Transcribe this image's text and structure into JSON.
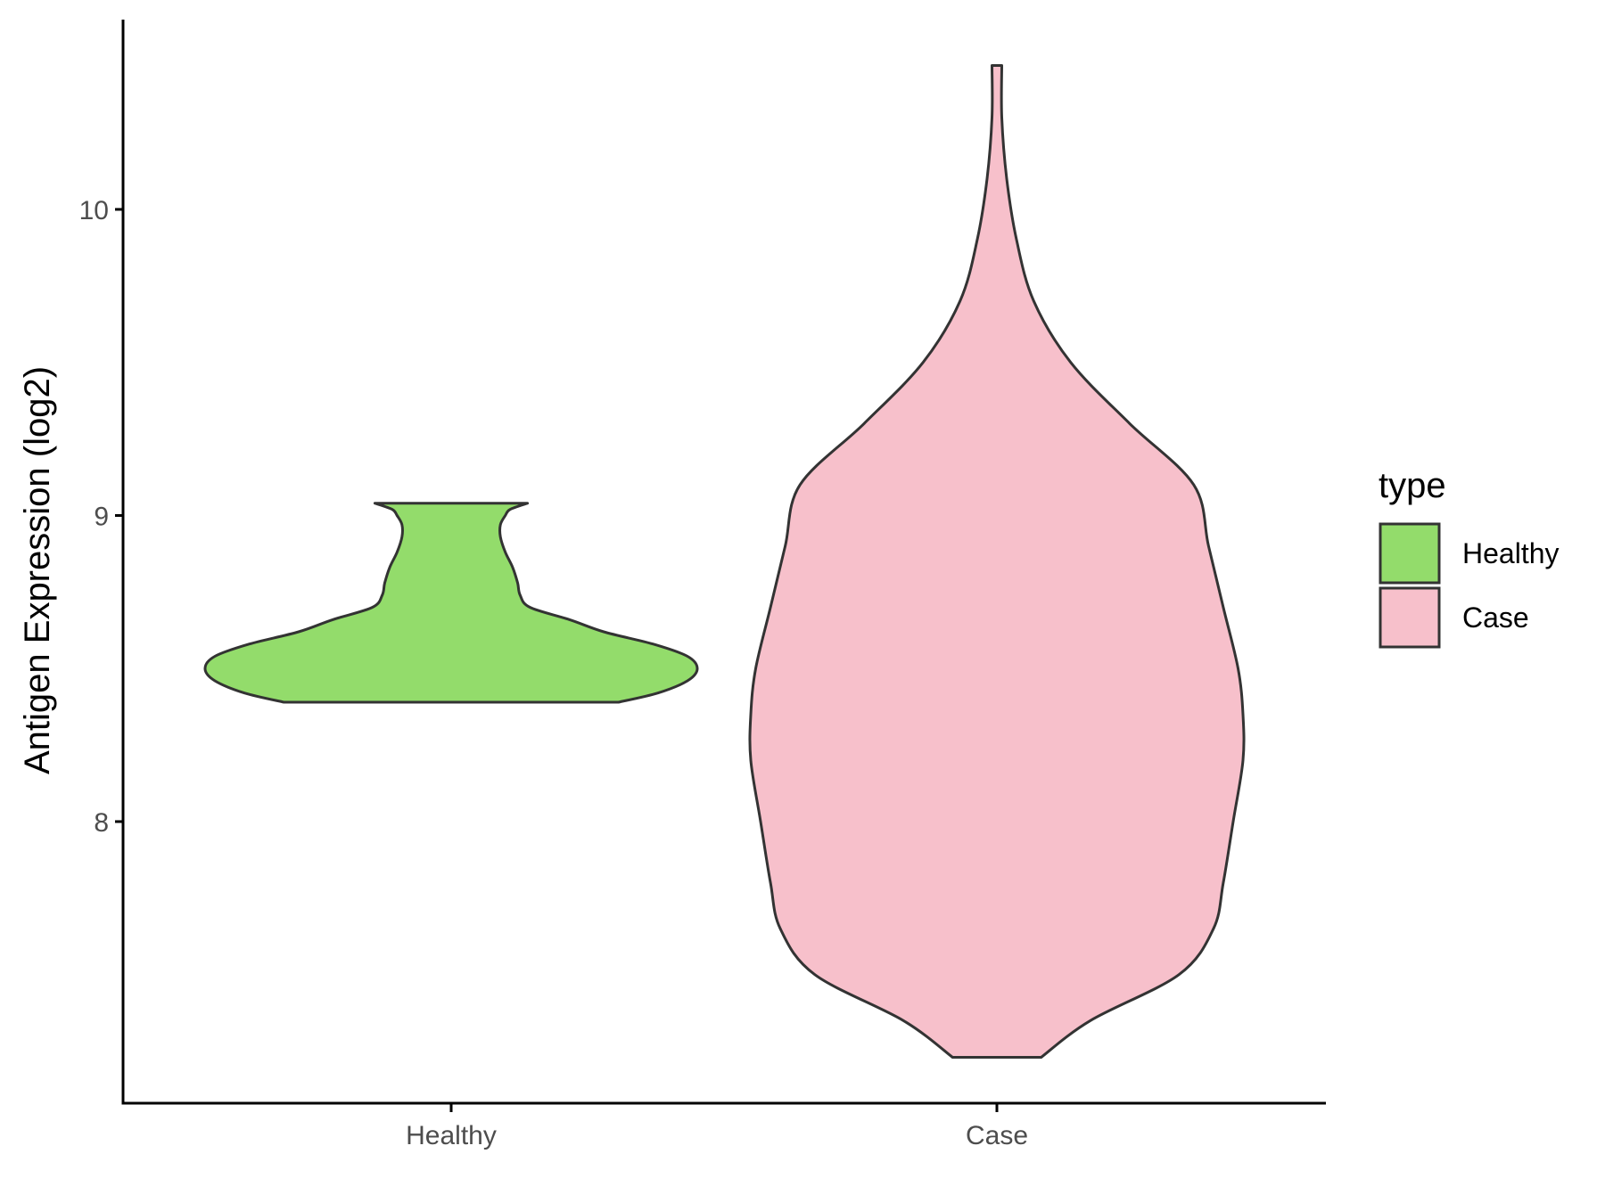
{
  "chart_data": {
    "type": "violin",
    "ylabel": "Antigen Expression (log2)",
    "xlabel": "",
    "categories": [
      "Healthy",
      "Case"
    ],
    "ylim": [
      7.08,
      10.62
    ],
    "yticks": [
      8,
      9,
      10
    ],
    "ytick_labels": [
      "8",
      "9",
      "10"
    ],
    "grid": false,
    "legend": {
      "title": "type",
      "position": "right",
      "entries": [
        {
          "label": "Healthy",
          "color": "#93dc6b"
        },
        {
          "label": "Case",
          "color": "#f7c0cb"
        }
      ]
    },
    "series": [
      {
        "name": "Healthy",
        "color": "#93dc6b",
        "y_min": 8.39,
        "y_max": 9.04,
        "density_profile": [
          [
            8.39,
            0.68
          ],
          [
            8.42,
            0.84
          ],
          [
            8.46,
            0.96
          ],
          [
            8.5,
            1.0
          ],
          [
            8.54,
            0.96
          ],
          [
            8.58,
            0.82
          ],
          [
            8.62,
            0.62
          ],
          [
            8.66,
            0.48
          ],
          [
            8.7,
            0.32
          ],
          [
            8.74,
            0.28
          ],
          [
            8.78,
            0.27
          ],
          [
            8.83,
            0.25
          ],
          [
            8.88,
            0.22
          ],
          [
            8.93,
            0.2
          ],
          [
            8.97,
            0.2
          ],
          [
            9.0,
            0.22
          ],
          [
            9.02,
            0.24
          ],
          [
            9.04,
            0.31
          ]
        ]
      },
      {
        "name": "Case",
        "color": "#f7c0cb",
        "y_min": 7.23,
        "y_max": 10.47,
        "density_profile": [
          [
            7.23,
            0.18
          ],
          [
            7.35,
            0.38
          ],
          [
            7.5,
            0.74
          ],
          [
            7.65,
            0.88
          ],
          [
            7.8,
            0.92
          ],
          [
            8.0,
            0.96
          ],
          [
            8.2,
            1.0
          ],
          [
            8.35,
            1.0
          ],
          [
            8.5,
            0.98
          ],
          [
            8.7,
            0.92
          ],
          [
            8.9,
            0.86
          ],
          [
            9.1,
            0.8
          ],
          [
            9.3,
            0.54
          ],
          [
            9.5,
            0.3
          ],
          [
            9.7,
            0.15
          ],
          [
            9.9,
            0.08
          ],
          [
            10.1,
            0.04
          ],
          [
            10.3,
            0.02
          ],
          [
            10.47,
            0.02
          ]
        ]
      }
    ]
  }
}
